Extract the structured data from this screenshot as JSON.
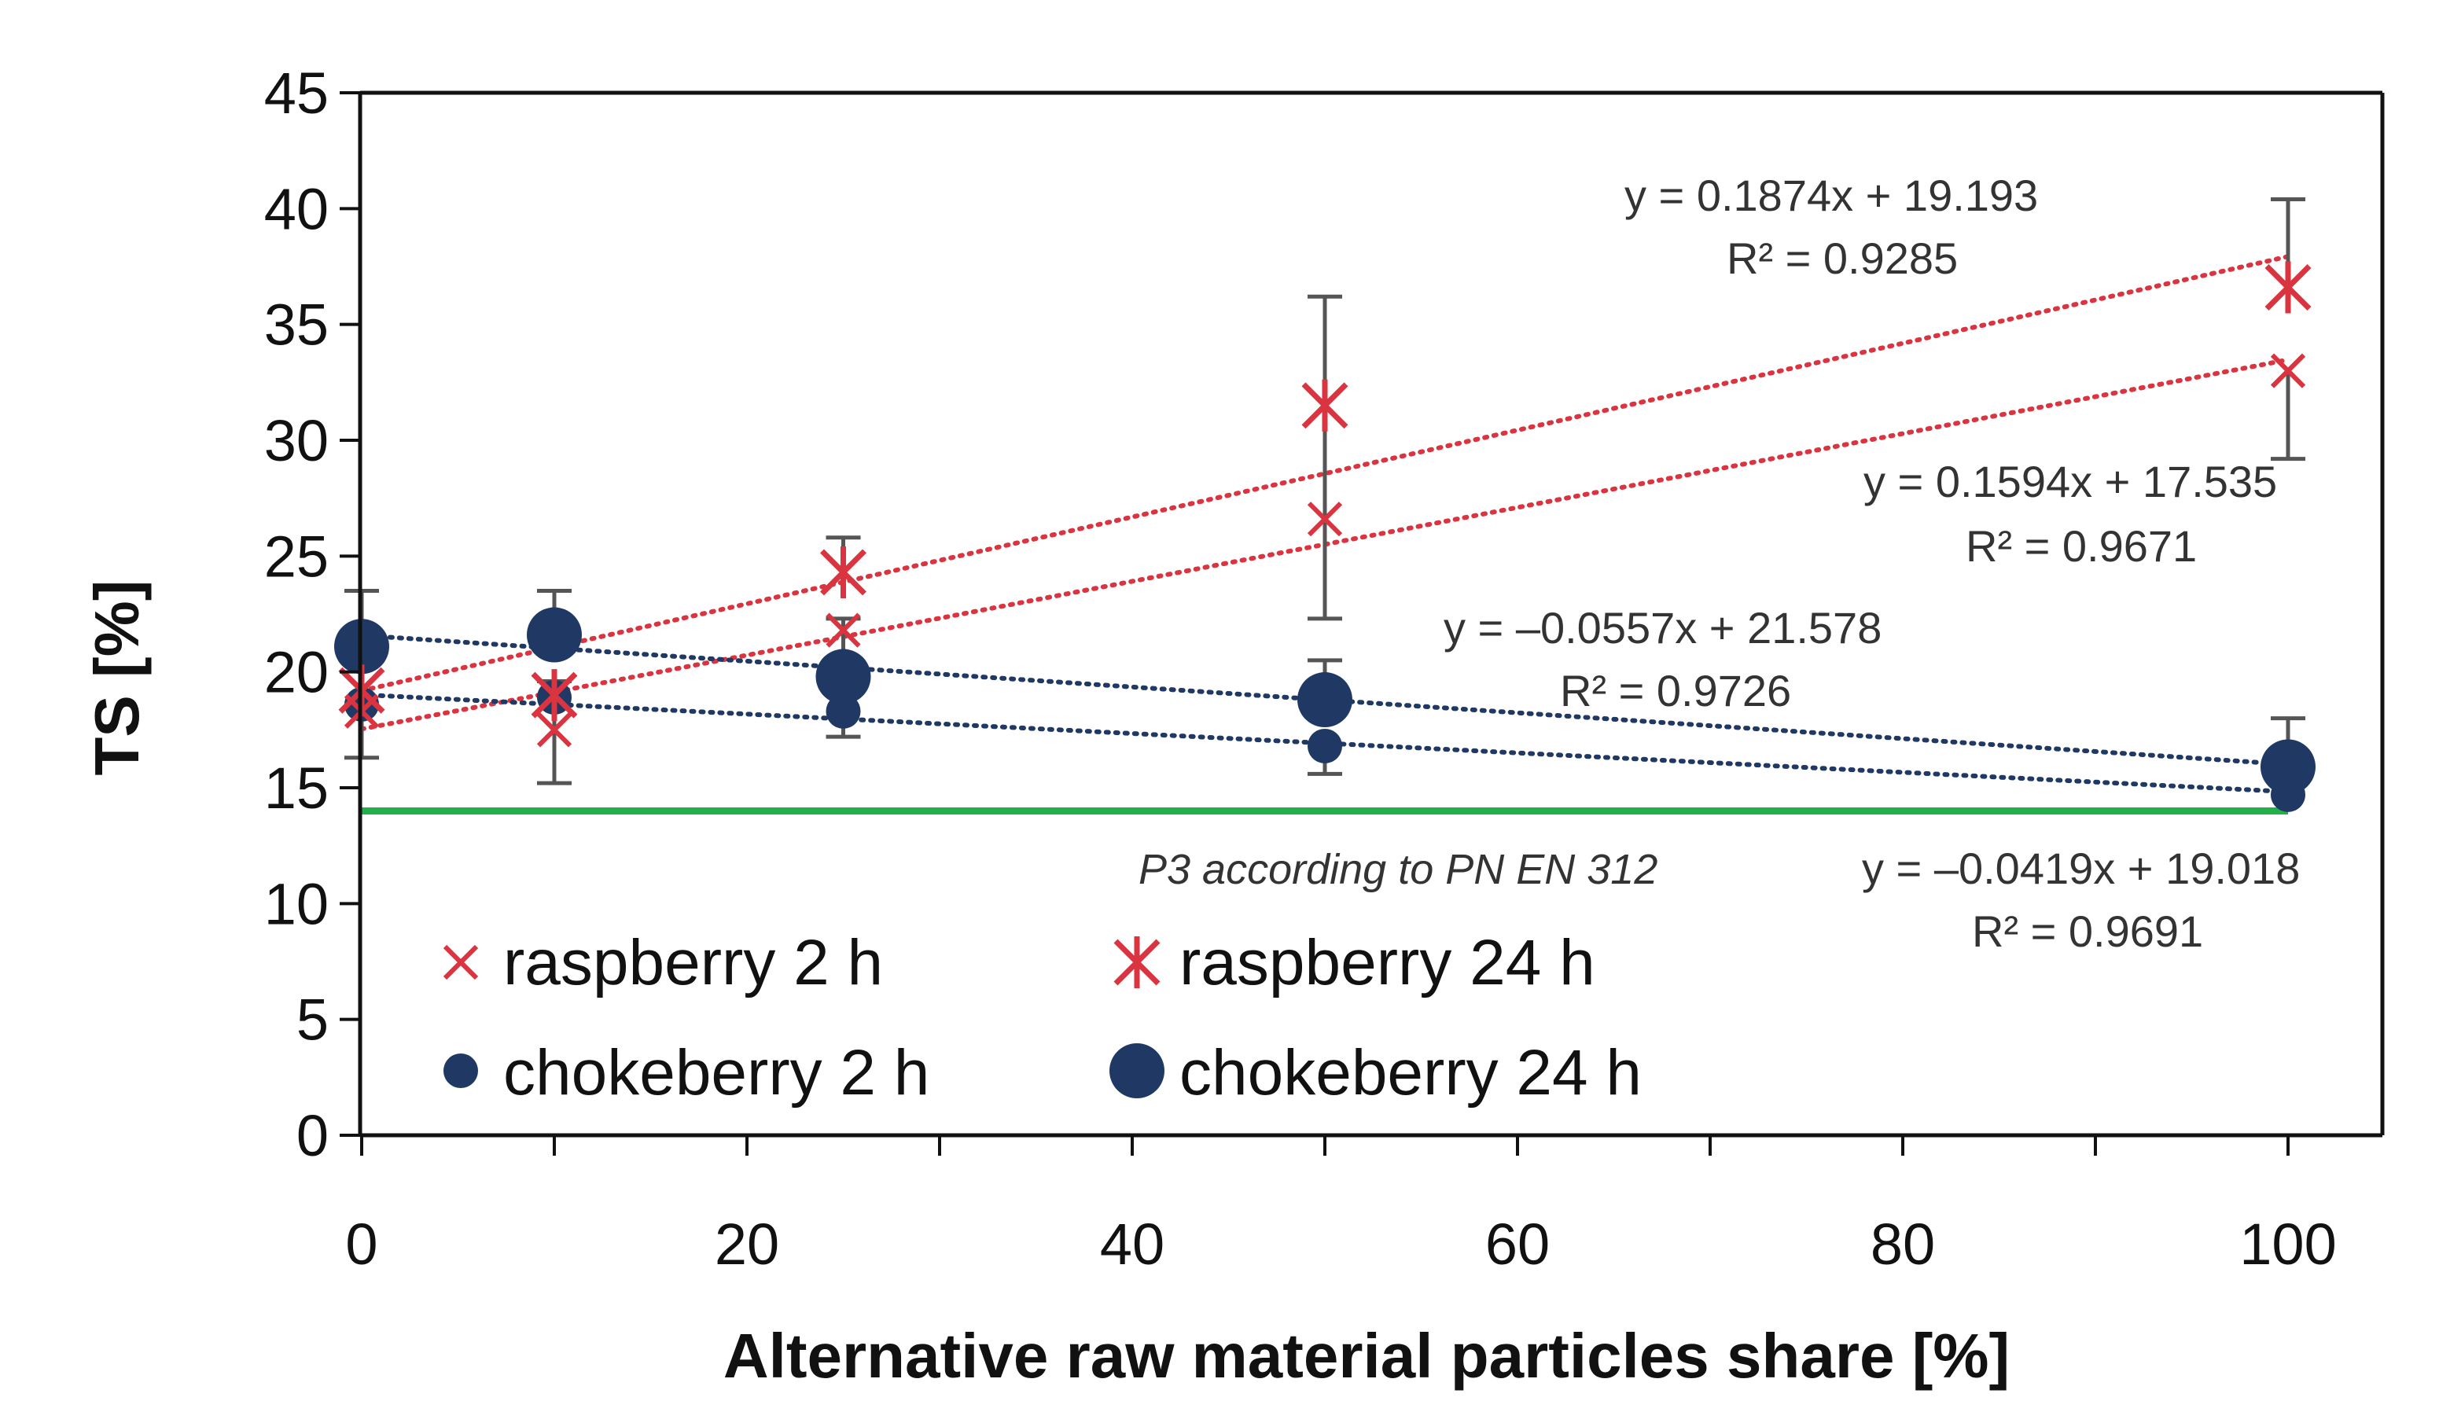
{
  "chart_data": {
    "type": "scatter",
    "title": "",
    "xlabel": "Alternative raw material particles share [%]",
    "ylabel": "TS [%]",
    "xlim": [
      0,
      105
    ],
    "ylim": [
      0,
      45
    ],
    "x_ticks": [
      0,
      20,
      40,
      60,
      80,
      100
    ],
    "x_tick_labels": [
      "0",
      "20",
      "40",
      "60",
      "80",
      "100"
    ],
    "y_ticks": [
      0,
      5,
      10,
      15,
      20,
      25,
      30,
      35,
      40,
      45
    ],
    "y_tick_labels": [
      "0",
      "5",
      "10",
      "15",
      "20",
      "25",
      "30",
      "35",
      "40",
      "45"
    ],
    "grid": false,
    "legend_position": "bottom-left",
    "series": [
      {
        "name": "raspberry 2 h",
        "marker": "x",
        "color": "#d9343f",
        "x": [
          0,
          10,
          25,
          50,
          100
        ],
        "y": [
          18.3,
          17.5,
          21.8,
          26.6,
          33.0
        ],
        "err_hi": [
          null,
          2.1,
          null,
          9.6,
          null
        ],
        "err_lo": [
          null,
          2.3,
          null,
          4.3,
          3.8
        ],
        "trend": {
          "slope": 0.1594,
          "intercept": 17.535,
          "equation": "y = 0.1594x + 17.535",
          "r2": "R² = 0.9671"
        }
      },
      {
        "name": "raspberry 24 h",
        "marker": "asterisk",
        "color": "#d9343f",
        "x": [
          0,
          10,
          25,
          50,
          100
        ],
        "y": [
          19.2,
          19.0,
          24.3,
          31.5,
          36.6
        ],
        "err_hi": [
          null,
          null,
          1.5,
          null,
          3.8
        ],
        "err_lo": [
          null,
          null,
          null,
          null,
          null
        ],
        "trend": {
          "slope": 0.1874,
          "intercept": 19.193,
          "equation": "y = 0.1874x + 19.193",
          "r2": "R² = 0.9285"
        }
      },
      {
        "name": "chokeberry 2 h",
        "marker": "circle-small",
        "color": "#1f3864",
        "x": [
          0,
          10,
          25,
          50,
          100
        ],
        "y": [
          18.6,
          18.9,
          18.3,
          16.8,
          14.7
        ],
        "err_hi": [
          null,
          null,
          null,
          null,
          null
        ],
        "err_lo": [
          2.3,
          null,
          1.1,
          1.2,
          null
        ],
        "trend": {
          "slope": -0.0419,
          "intercept": 19.018,
          "equation": "y = –0.0419x + 19.018",
          "r2": "R² = 0.9691"
        }
      },
      {
        "name": "chokeberry 24 h",
        "marker": "circle-large",
        "color": "#1f3864",
        "x": [
          0,
          10,
          25,
          50,
          100
        ],
        "y": [
          21.1,
          21.6,
          19.8,
          18.8,
          15.9
        ],
        "err_hi": [
          2.4,
          1.9,
          2.5,
          1.7,
          2.1
        ],
        "err_lo": [
          null,
          null,
          null,
          null,
          null
        ],
        "trend": {
          "slope": -0.0557,
          "intercept": 21.578,
          "equation": "y = –0.0557x + 21.578",
          "r2": "R² = 0.9726"
        }
      }
    ],
    "reference_line": {
      "y": 14,
      "x_range": [
        0,
        100
      ],
      "color": "#22b04b",
      "label": "P3 according to PN EN 312"
    }
  },
  "colors": {
    "raspberry": "#d9343f",
    "chokeberry": "#1f3864",
    "reference": "#22b04b",
    "error_bar": "#555555"
  }
}
